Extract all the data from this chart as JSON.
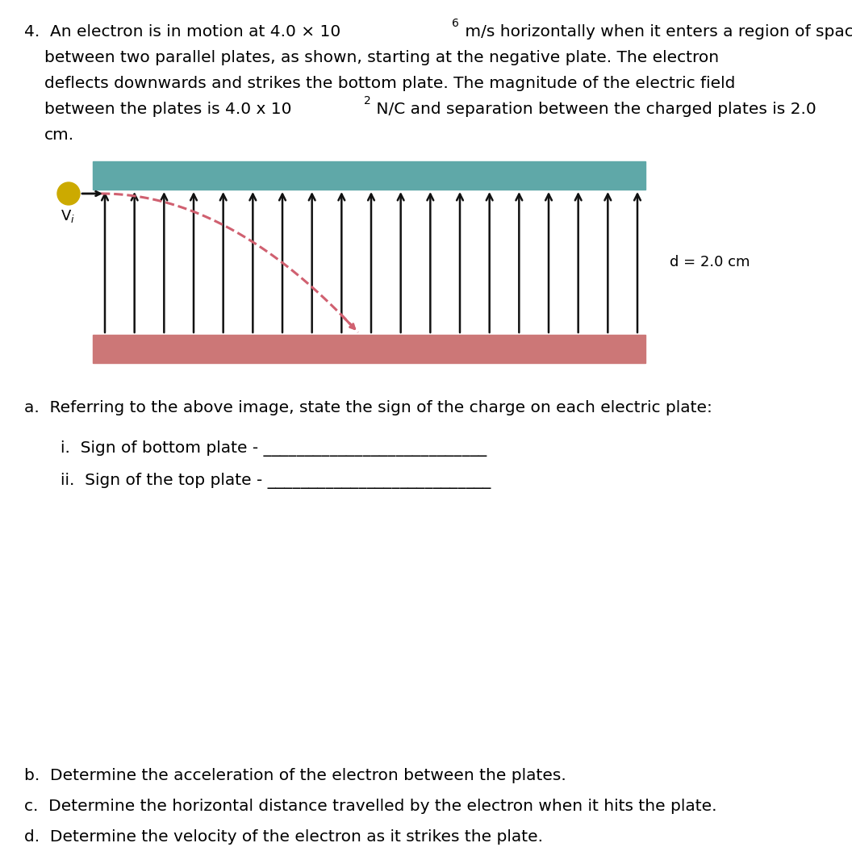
{
  "bg_color": "#ffffff",
  "top_plate_color": "#5fa8a8",
  "bottom_plate_color": "#cc7777",
  "arrow_color": "#111111",
  "dashed_color": "#d06070",
  "electron_color": "#ccaa00",
  "diagram_label": "d = 2.0 cm",
  "font_size_body": 14.5,
  "font_size_small": 10,
  "font_size_label": 13,
  "line1a": "4.  An electron is in motion at 4.0 × 10",
  "line1b": "6",
  "line1c": " m/s horizontally when it enters a region of space",
  "line2": "between two parallel plates, as shown, starting at the negative plate. The electron",
  "line3": "deflects downwards and strikes the bottom plate. The magnitude of the electric field",
  "line4a": "between the plates is 4.0 x 10",
  "line4b": "2",
  "line4c": " N/C and separation between the charged plates is 2.0",
  "line5": "cm.",
  "question_a": "a.  Referring to the above image, state the sign of the charge on each electric plate:",
  "question_ai": "i.  Sign of bottom plate - ___________________________",
  "question_aii": "ii.  Sign of the top plate - ___________________________",
  "question_b": "b.  Determine the acceleration of the electron between the plates.",
  "question_c": "c.  Determine the horizontal distance travelled by the electron when it hits the plate.",
  "question_d": "d.  Determine the velocity of the electron as it strikes the plate."
}
